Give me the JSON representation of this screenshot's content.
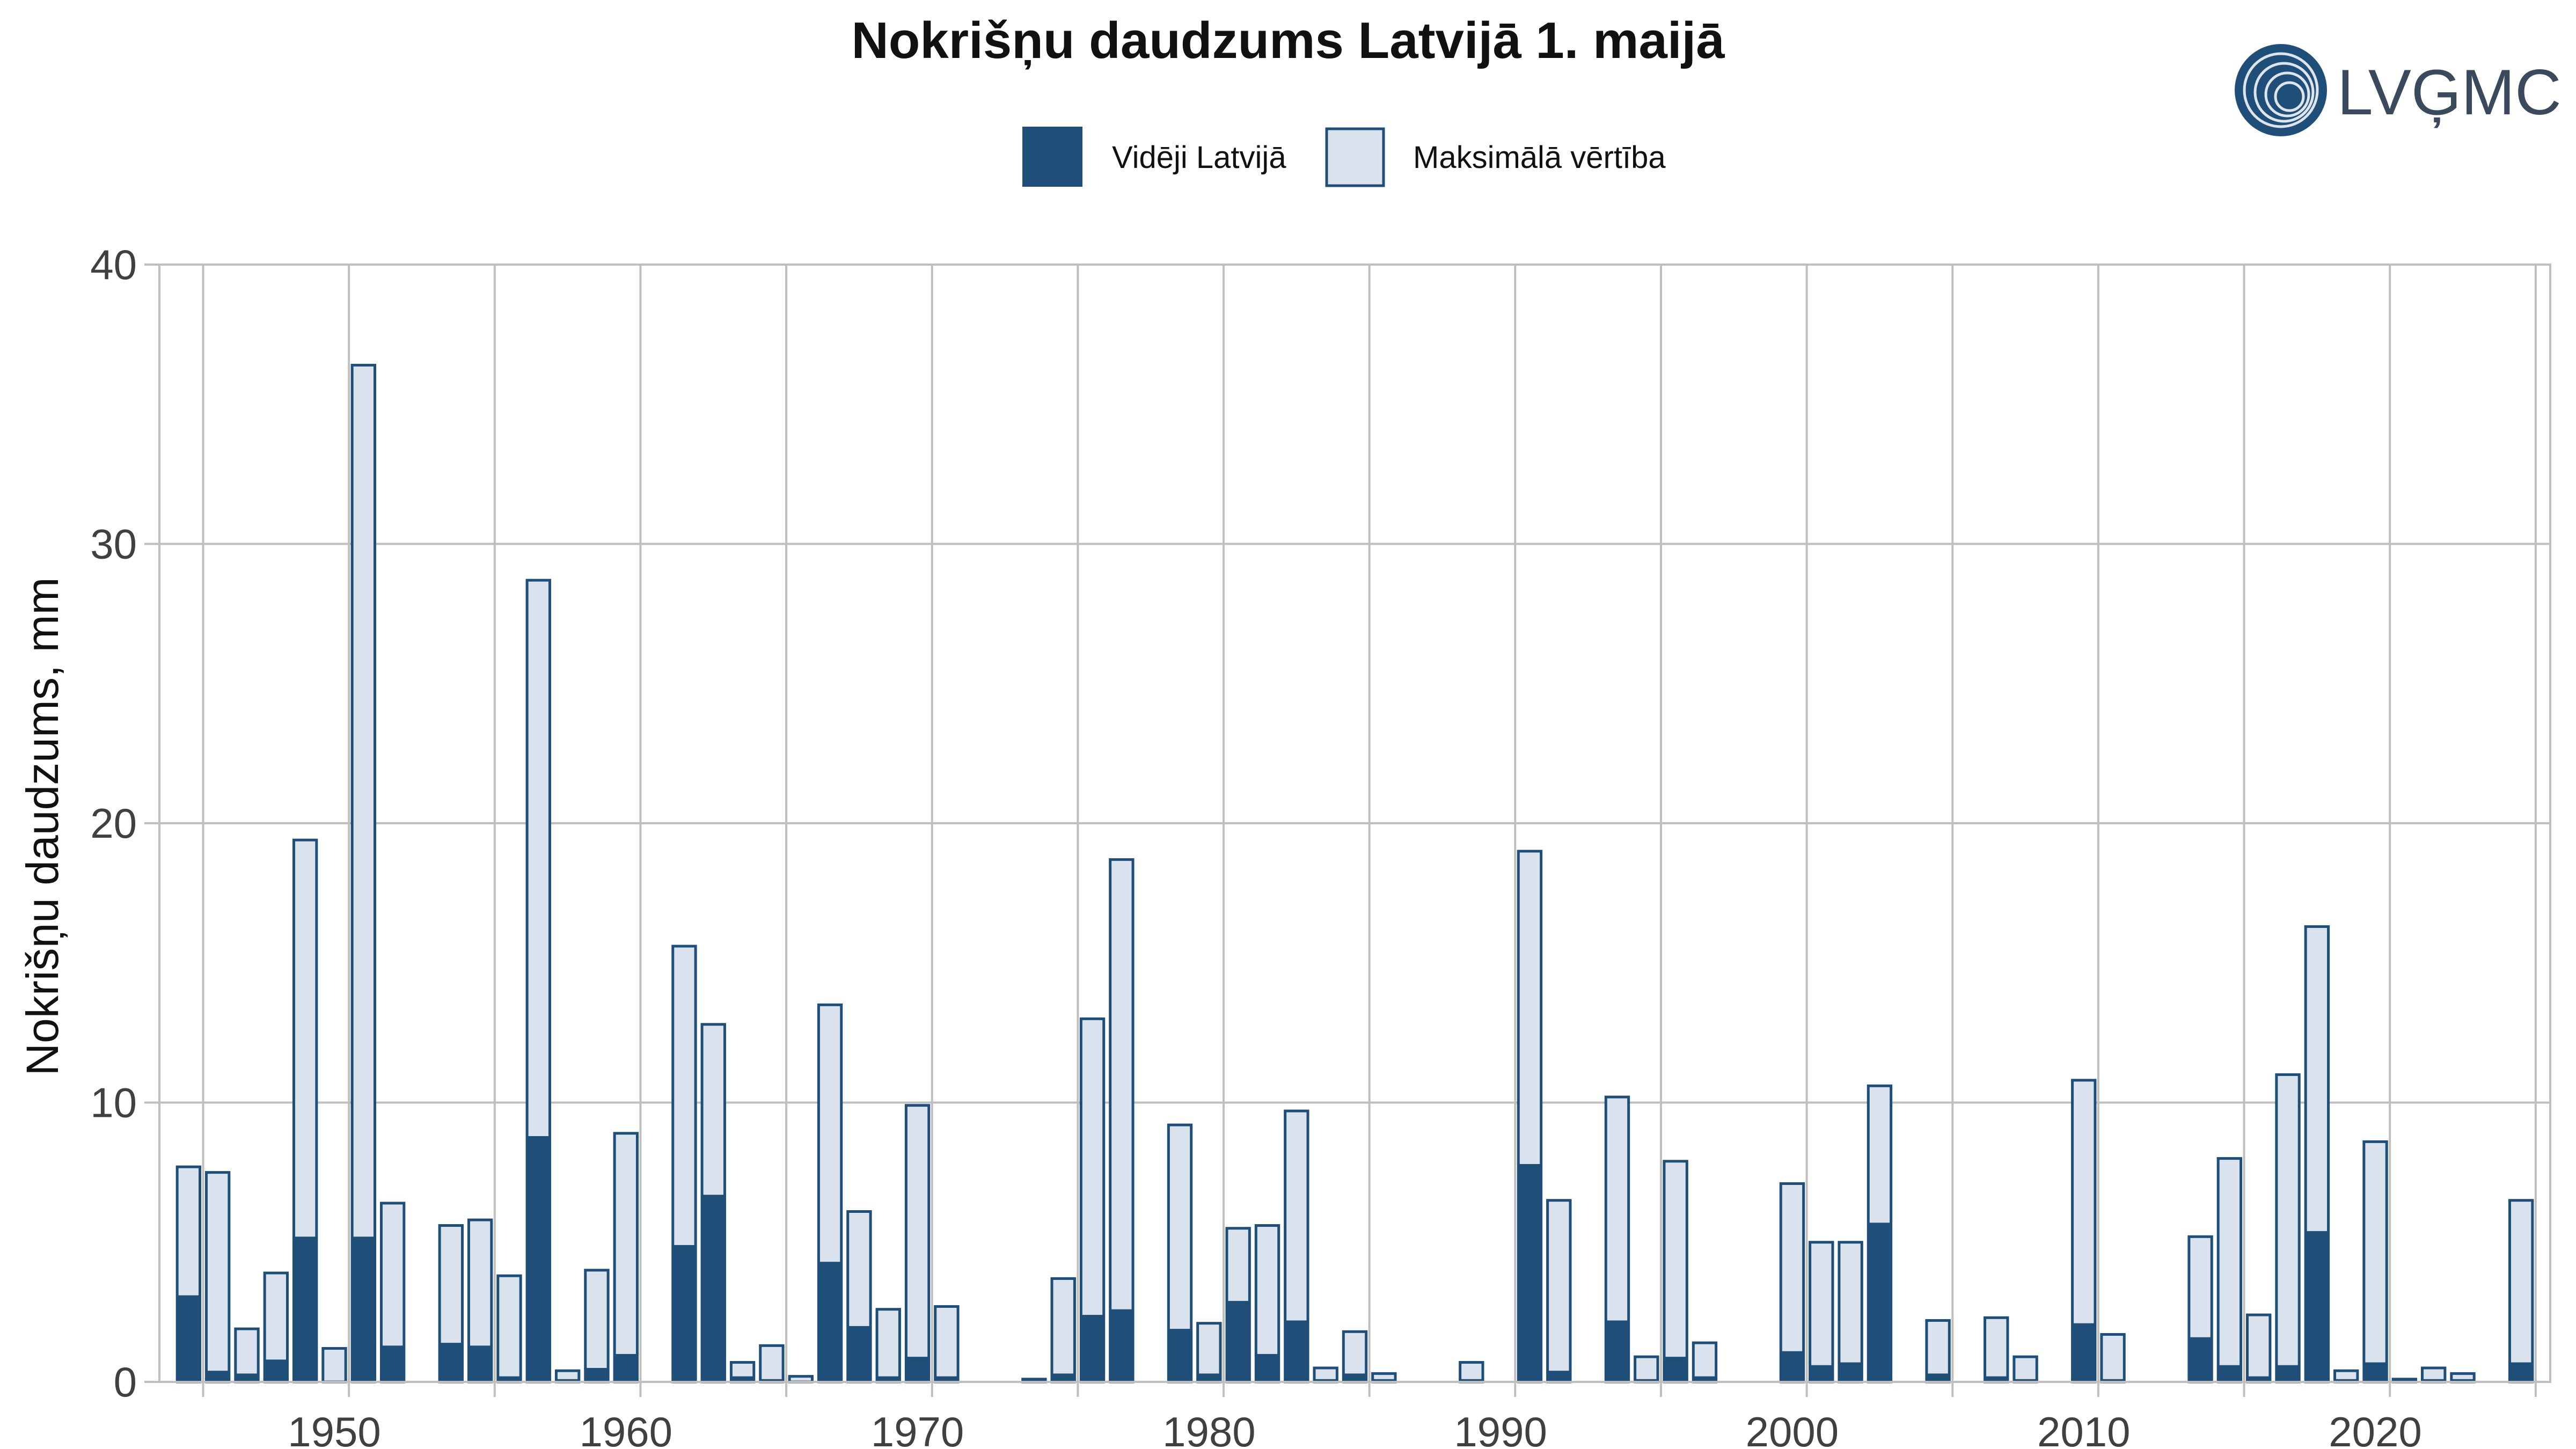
{
  "chart_data": {
    "type": "bar",
    "title": "Nokrišņu daudzums Latvijā 1. maijā",
    "xlabel": "",
    "ylabel": "Nokrišņu daudzums, mm",
    "ylim": [
      0,
      40
    ],
    "xlim": [
      1944,
      2026
    ],
    "yticks": [
      0,
      10,
      20,
      30,
      40
    ],
    "xticks": [
      1950,
      1960,
      1970,
      1980,
      1990,
      2000,
      2010,
      2020
    ],
    "grid": true,
    "legend_position": "top-center",
    "logo": "LVĢMC",
    "colors": {
      "average": "#1f4e79",
      "max": "#dae3ed",
      "max_edge": "#1f4e79",
      "grid": "#bfbfbf"
    },
    "x": [
      1945,
      1946,
      1947,
      1948,
      1949,
      1950,
      1951,
      1952,
      1953,
      1954,
      1955,
      1956,
      1957,
      1958,
      1959,
      1960,
      1961,
      1962,
      1963,
      1964,
      1965,
      1966,
      1967,
      1968,
      1969,
      1970,
      1971,
      1972,
      1973,
      1974,
      1975,
      1976,
      1977,
      1978,
      1979,
      1980,
      1981,
      1982,
      1983,
      1984,
      1985,
      1986,
      1987,
      1988,
      1989,
      1990,
      1991,
      1992,
      1993,
      1994,
      1995,
      1996,
      1997,
      1998,
      1999,
      2000,
      2001,
      2002,
      2003,
      2004,
      2005,
      2006,
      2007,
      2008,
      2009,
      2010,
      2011,
      2012,
      2013,
      2014,
      2015,
      2016,
      2017,
      2018,
      2019,
      2020,
      2021,
      2022,
      2023,
      2024,
      2025
    ],
    "series": [
      {
        "name": "Vidēji Latvijā",
        "role": "average",
        "values": [
          3.1,
          0.4,
          0.3,
          0.8,
          5.2,
          0.0,
          5.2,
          1.3,
          0.0,
          1.4,
          1.3,
          0.2,
          8.8,
          0.1,
          0.5,
          1.0,
          0.0,
          4.9,
          6.7,
          0.2,
          0.1,
          0.0,
          4.3,
          2.0,
          0.2,
          0.9,
          0.2,
          0.0,
          0.0,
          0.1,
          0.3,
          2.4,
          2.6,
          0.0,
          1.9,
          0.3,
          2.9,
          1.0,
          2.2,
          0.1,
          0.3,
          0.1,
          0.0,
          0.0,
          0.1,
          0.0,
          7.8,
          0.4,
          0.0,
          2.2,
          0.1,
          0.9,
          0.2,
          0.0,
          0.0,
          1.1,
          0.6,
          0.7,
          5.7,
          0.0,
          0.3,
          0.0,
          0.2,
          0.1,
          0.0,
          2.1,
          0.1,
          0.0,
          0.0,
          1.6,
          0.6,
          0.2,
          0.6,
          5.4,
          0.1,
          0.7,
          0.1,
          0.1,
          0.1,
          0.0,
          0.7
        ]
      },
      {
        "name": "Maksimālā vērtība",
        "role": "max",
        "values": [
          7.7,
          7.5,
          1.9,
          3.9,
          19.4,
          1.2,
          36.4,
          6.4,
          0.0,
          5.6,
          5.8,
          3.8,
          28.7,
          0.4,
          4.0,
          8.9,
          0.0,
          15.6,
          12.8,
          0.7,
          1.3,
          0.2,
          13.5,
          6.1,
          2.6,
          9.9,
          2.7,
          0.0,
          0.0,
          0.1,
          3.7,
          13.0,
          18.7,
          0.0,
          9.2,
          2.1,
          5.5,
          5.6,
          9.7,
          0.5,
          1.8,
          0.3,
          0.0,
          0.0,
          0.7,
          0.0,
          19.0,
          6.5,
          0.0,
          10.2,
          0.9,
          7.9,
          1.4,
          0.0,
          0.0,
          7.1,
          5.0,
          5.0,
          10.6,
          0.0,
          2.2,
          0.0,
          2.3,
          0.9,
          0.0,
          10.8,
          1.7,
          0.0,
          0.0,
          5.2,
          8.0,
          2.4,
          11.0,
          16.3,
          0.4,
          8.6,
          0.1,
          0.5,
          0.3,
          0.0,
          6.5
        ]
      }
    ]
  }
}
